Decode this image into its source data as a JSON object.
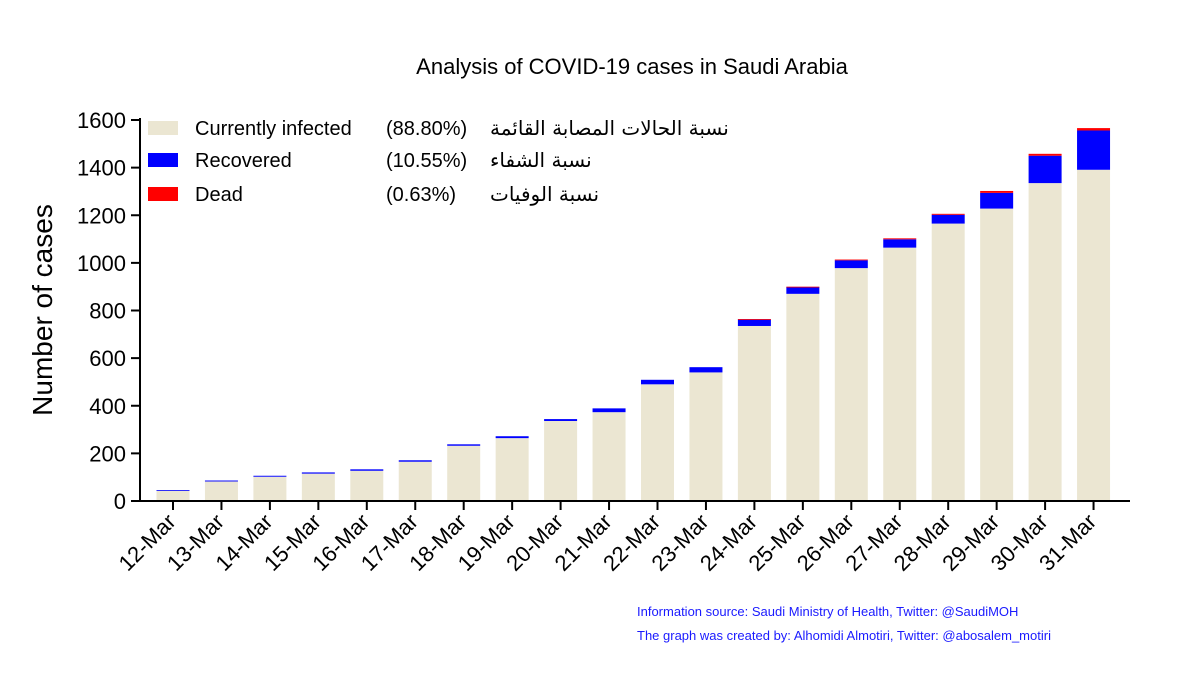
{
  "chart_data": {
    "type": "bar",
    "stacked": true,
    "title": "Analysis of COVID-19 cases in Saudi Arabia",
    "xlabel": "",
    "ylabel": "Number of cases",
    "ylim": [
      0,
      1600
    ],
    "yticks": [
      0,
      200,
      400,
      600,
      800,
      1000,
      1200,
      1400,
      1600
    ],
    "categories": [
      "12-Mar",
      "13-Mar",
      "14-Mar",
      "15-Mar",
      "16-Mar",
      "17-Mar",
      "18-Mar",
      "19-Mar",
      "20-Mar",
      "21-Mar",
      "22-Mar",
      "23-Mar",
      "24-Mar",
      "25-Mar",
      "26-Mar",
      "27-Mar",
      "28-Mar",
      "29-Mar",
      "30-Mar",
      "31-Mar"
    ],
    "series": [
      {
        "name": "Currently infected",
        "color": "#ebe6d2",
        "values": [
          45,
          82,
          102,
          115,
          127,
          165,
          232,
          264,
          336,
          373,
          490,
          540,
          735,
          870,
          978,
          1064,
          1165,
          1228,
          1335,
          1391
        ]
      },
      {
        "name": "Recovered",
        "color": "#0000ff",
        "values": [
          1,
          4,
          4,
          5,
          6,
          6,
          6,
          8,
          8,
          16,
          19,
          22,
          28,
          29,
          33,
          35,
          37,
          66,
          115,
          165
        ]
      },
      {
        "name": "Dead",
        "color": "#ff0000",
        "values": [
          0,
          0,
          0,
          0,
          0,
          0,
          0,
          0,
          0,
          0,
          0,
          0,
          1,
          1,
          3,
          4,
          4,
          8,
          8,
          10
        ]
      }
    ],
    "legend": {
      "position": "top-left",
      "entries": [
        {
          "label": "Currently infected",
          "percent": "(88.80%)",
          "arabic": "نسبة الحالات المصابة القائمة"
        },
        {
          "label": "Recovered",
          "percent": "(10.55%)",
          "arabic": "نسبة الشفاء"
        },
        {
          "label": "Dead",
          "percent": "(0.63%)",
          "arabic": "نسبة الوفيات"
        }
      ]
    },
    "grid": false
  },
  "credits": {
    "source": "Information source:  Saudi Ministry of Health, Twitter: @SaudiMOH",
    "author": "The graph was created by: Alhomidi Almotiri, Twitter: @abosalem_motiri"
  }
}
